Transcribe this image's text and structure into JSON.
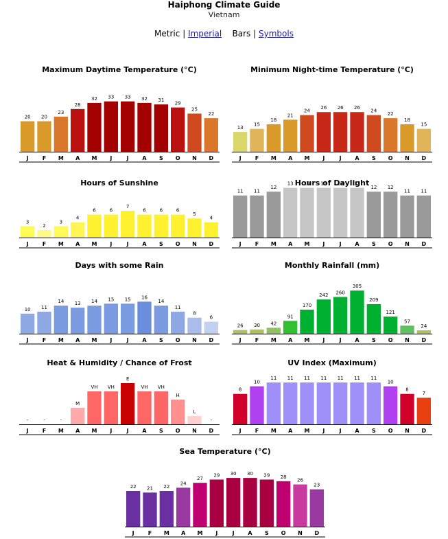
{
  "page": {
    "title": "Haiphong Climate Guide",
    "subtitle": "Vietnam",
    "nav": {
      "metric": "Metric",
      "imperial": "Imperial",
      "bars": "Bars",
      "symbols": "Symbols",
      "sep": "|"
    }
  },
  "months": [
    "J",
    "F",
    "M",
    "A",
    "M",
    "J",
    "J",
    "A",
    "S",
    "O",
    "N",
    "D"
  ],
  "chart_data": [
    {
      "id": "max-temp",
      "type": "bar",
      "title": "Maximum Daytime Temperature (°C)",
      "categories": [
        "J",
        "F",
        "M",
        "A",
        "M",
        "J",
        "J",
        "A",
        "S",
        "O",
        "N",
        "D"
      ],
      "values": [
        20,
        20,
        23,
        28,
        32,
        33,
        33,
        32,
        31,
        29,
        25,
        22
      ],
      "ylim": [
        0,
        36
      ],
      "colors": [
        "#d99a2a",
        "#d99a2a",
        "#d9772a",
        "#bb1010",
        "#a30000",
        "#a30000",
        "#a30000",
        "#a30000",
        "#a30000",
        "#bb1010",
        "#d04a20",
        "#d9772a"
      ]
    },
    {
      "id": "min-temp",
      "type": "bar",
      "title": "Minimum Night-time Temperature (°C)",
      "categories": [
        "J",
        "F",
        "M",
        "A",
        "M",
        "J",
        "J",
        "A",
        "S",
        "O",
        "N",
        "D"
      ],
      "values": [
        13,
        15,
        18,
        21,
        24,
        26,
        26,
        26,
        24,
        22,
        18,
        15
      ],
      "ylim": [
        0,
        36
      ],
      "colors": [
        "#d9d76a",
        "#e0b458",
        "#d99a2a",
        "#d99a2a",
        "#d04a20",
        "#c82818",
        "#c82818",
        "#c82818",
        "#d04a20",
        "#d9772a",
        "#d99a2a",
        "#e0b458"
      ]
    },
    {
      "id": "sunshine",
      "type": "bar",
      "title": "Hours of Sunshine",
      "categories": [
        "J",
        "F",
        "M",
        "A",
        "M",
        "J",
        "J",
        "A",
        "S",
        "O",
        "N",
        "D"
      ],
      "values": [
        3,
        2,
        3,
        4,
        6,
        6,
        7,
        6,
        6,
        6,
        5,
        4
      ],
      "ylim": [
        0,
        14
      ],
      "colors": [
        "#fffa55",
        "#fffa88",
        "#fffa55",
        "#fff655",
        "#fff030",
        "#fff030",
        "#fff030",
        "#fff030",
        "#fff030",
        "#fff030",
        "#fff030",
        "#fff030"
      ]
    },
    {
      "id": "daylight",
      "type": "bar",
      "title": "Hours of Daylight",
      "categories": [
        "J",
        "F",
        "M",
        "A",
        "M",
        "J",
        "J",
        "A",
        "S",
        "O",
        "N",
        "D"
      ],
      "values": [
        11,
        11,
        12,
        13,
        13,
        13,
        13,
        13,
        12,
        12,
        11,
        11
      ],
      "ylim": [
        0,
        14
      ],
      "colors": [
        "#9a9a9a",
        "#9a9a9a",
        "#9a9a9a",
        "#c6c6c6",
        "#c6c6c6",
        "#c6c6c6",
        "#c6c6c6",
        "#c6c6c6",
        "#9a9a9a",
        "#9a9a9a",
        "#9a9a9a",
        "#9a9a9a"
      ]
    },
    {
      "id": "rain-days",
      "type": "bar",
      "title": "Days with some Rain",
      "categories": [
        "J",
        "F",
        "M",
        "A",
        "M",
        "J",
        "J",
        "A",
        "S",
        "O",
        "N",
        "D"
      ],
      "values": [
        10,
        11,
        14,
        13,
        14,
        15,
        15,
        16,
        14,
        11,
        8,
        6
      ],
      "ylim": [
        0,
        24
      ],
      "colors": [
        "#8ea8e4",
        "#8ea8e4",
        "#7b9be0",
        "#7b9be0",
        "#7b9be0",
        "#7b9be0",
        "#7b9be0",
        "#6a8ddc",
        "#7b9be0",
        "#8ea8e4",
        "#a9bcec",
        "#c4d0f0"
      ]
    },
    {
      "id": "rainfall",
      "type": "bar",
      "title": "Monthly Rainfall (mm)",
      "categories": [
        "J",
        "F",
        "M",
        "A",
        "M",
        "J",
        "J",
        "A",
        "S",
        "O",
        "N",
        "D"
      ],
      "values": [
        26,
        30,
        42,
        91,
        170,
        242,
        260,
        305,
        209,
        121,
        57,
        24
      ],
      "ylim": [
        0,
        340
      ],
      "colors": [
        "#b0c060",
        "#b0c060",
        "#90c060",
        "#30c030",
        "#00b030",
        "#00b030",
        "#00b030",
        "#00b030",
        "#00b030",
        "#00b030",
        "#60c060",
        "#b0c060"
      ]
    },
    {
      "id": "heat-humidity",
      "type": "bar",
      "title": "Heat & Humidity / Chance of Frost",
      "categories": [
        "J",
        "F",
        "M",
        "A",
        "M",
        "J",
        "J",
        "A",
        "S",
        "O",
        "N",
        "D"
      ],
      "values": [
        0,
        0,
        0,
        2,
        4,
        4,
        5,
        4,
        4,
        3,
        1,
        0
      ],
      "ylim": [
        0,
        6
      ],
      "labels": [
        "-",
        "-",
        "-",
        "M",
        "VH",
        "VH",
        "E",
        "VH",
        "VH",
        "H",
        "L",
        "-"
      ],
      "colors": [
        "#ffffff",
        "#ffffff",
        "#ffffff",
        "#ffaaaa",
        "#ff6666",
        "#ff6666",
        "#c80000",
        "#ff6666",
        "#ff6666",
        "#ff9090",
        "#ffd0d0",
        "#ffffff"
      ]
    },
    {
      "id": "uv-index",
      "type": "bar",
      "title": "UV Index (Maximum)",
      "categories": [
        "J",
        "F",
        "M",
        "A",
        "M",
        "J",
        "J",
        "A",
        "S",
        "O",
        "N",
        "D"
      ],
      "values": [
        8,
        10,
        11,
        11,
        11,
        11,
        11,
        11,
        11,
        10,
        8,
        7
      ],
      "ylim": [
        0,
        13
      ],
      "colors": [
        "#d0002a",
        "#b040f0",
        "#9e90f8",
        "#9e90f8",
        "#9e90f8",
        "#9e90f8",
        "#9e90f8",
        "#9e90f8",
        "#9e90f8",
        "#b040f0",
        "#d0002a",
        "#e84010"
      ]
    },
    {
      "id": "sea-temp",
      "type": "bar",
      "title": "Sea Temperature (°C)",
      "categories": [
        "J",
        "F",
        "M",
        "A",
        "M",
        "J",
        "J",
        "A",
        "S",
        "O",
        "N",
        "D"
      ],
      "values": [
        22,
        21,
        22,
        24,
        27,
        29,
        30,
        30,
        29,
        28,
        26,
        23
      ],
      "ylim": [
        0,
        33
      ],
      "colors": [
        "#6a2fa0",
        "#6a2fa0",
        "#6a2fa0",
        "#9a3aa0",
        "#c00070",
        "#a80040",
        "#a80040",
        "#a80040",
        "#a80040",
        "#c00070",
        "#c83aa0",
        "#9a3aa0"
      ]
    }
  ]
}
